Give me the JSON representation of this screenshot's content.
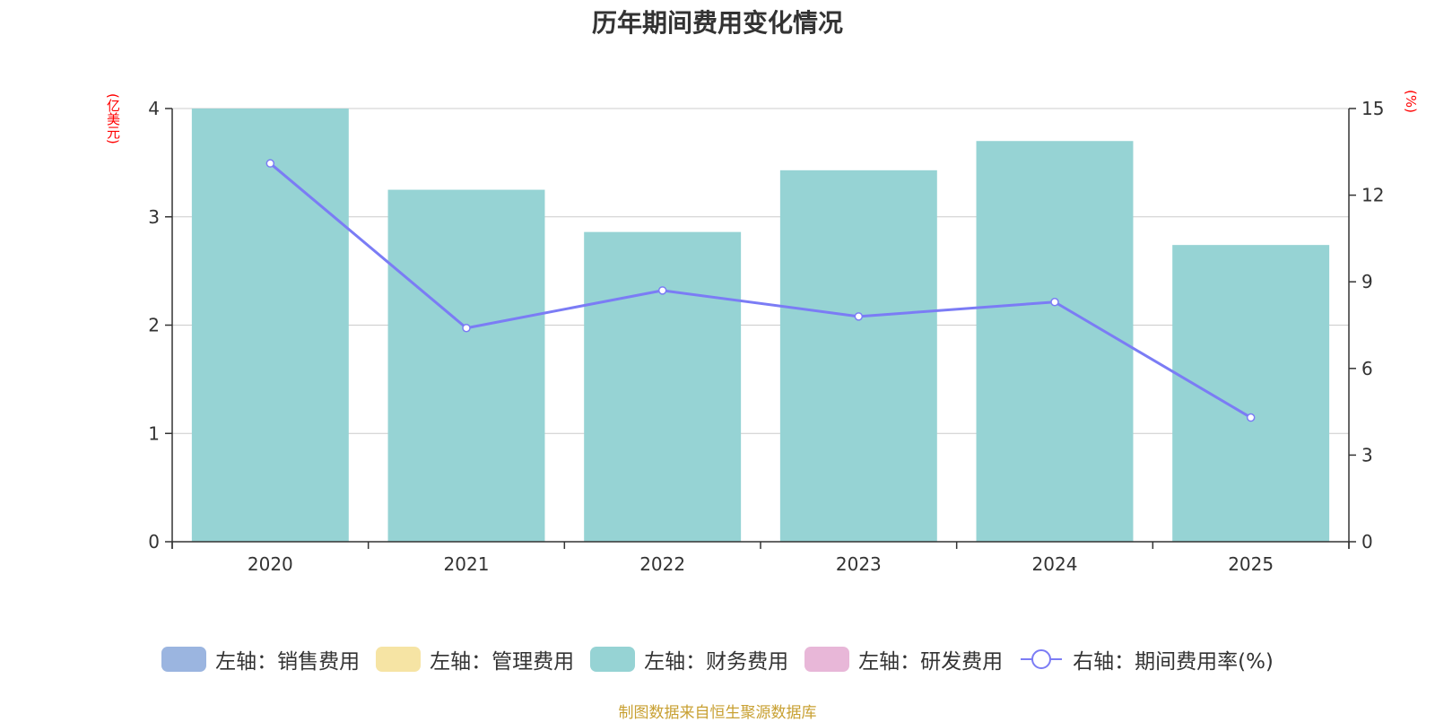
{
  "title": "历年期间费用变化情况",
  "left_unit": "(亿美元)",
  "right_unit": "(%)",
  "legend": [
    {
      "label": "左轴：销售费用",
      "color": "#9bb5e0",
      "kind": "box"
    },
    {
      "label": "左轴：管理费用",
      "color": "#f6e4a4",
      "kind": "box"
    },
    {
      "label": "左轴：财务费用",
      "color": "#96d3d4",
      "kind": "box"
    },
    {
      "label": "左轴：研发费用",
      "color": "#e8b7d8",
      "kind": "box"
    },
    {
      "label": "右轴：期间费用率(%)",
      "color": "#7b7cf5",
      "kind": "line"
    }
  ],
  "source": "制图数据来自恒生聚源数据库",
  "chart_data": {
    "type": "bar",
    "categories": [
      "2020",
      "2021",
      "2022",
      "2023",
      "2024",
      "2025"
    ],
    "series": [
      {
        "name": "左轴：财务费用",
        "axis": "left",
        "type": "bar",
        "color": "#96d3d4",
        "values": [
          4.0,
          3.25,
          2.86,
          3.43,
          3.7,
          2.74
        ]
      },
      {
        "name": "右轴：期间费用率(%)",
        "axis": "right",
        "type": "line",
        "color": "#7b7cf5",
        "values": [
          13.1,
          7.4,
          8.7,
          7.8,
          8.3,
          4.3
        ]
      }
    ],
    "y_left": {
      "min": 0,
      "max": 4,
      "ticks": [
        0,
        1,
        2,
        3,
        4
      ]
    },
    "y_right": {
      "min": 0,
      "max": 15,
      "ticks": [
        0,
        3,
        6,
        9,
        12,
        15
      ]
    },
    "grid": true
  }
}
